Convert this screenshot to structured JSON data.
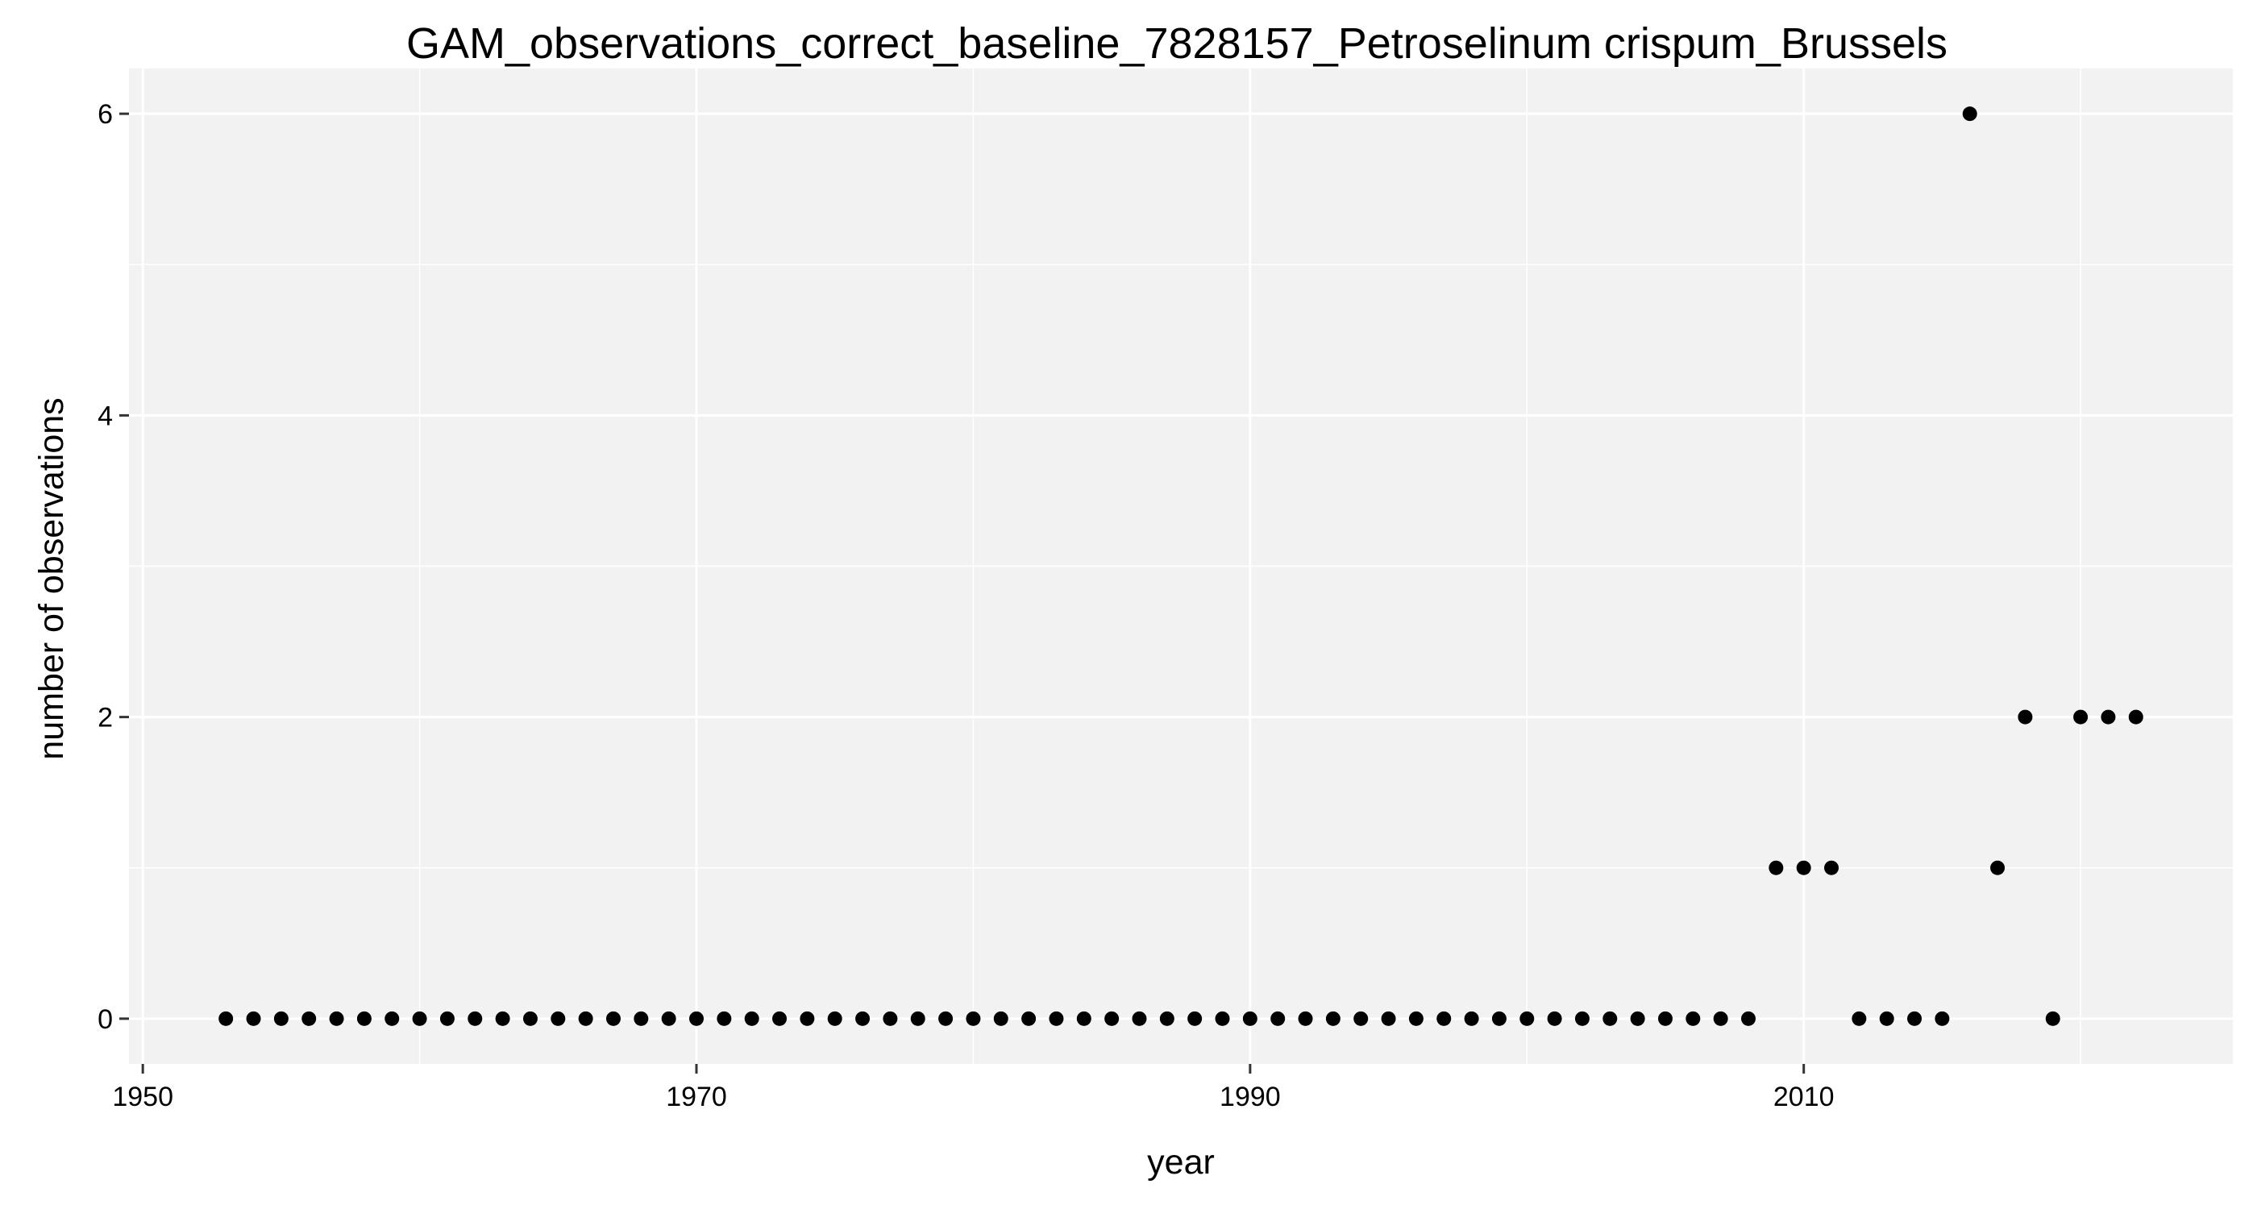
{
  "chart_data": {
    "type": "scatter",
    "title": "GAM_observations_correct_baseline_7828157_Petroselinum crispum_Brussels",
    "xlabel": "year",
    "ylabel": "number of observations",
    "xlim": [
      1949.5,
      2025.5
    ],
    "ylim": [
      -0.3,
      6.3
    ],
    "x_ticks": [
      1950,
      1970,
      1990,
      2010
    ],
    "x_tick_labels": [
      "1950",
      "1970",
      "1990",
      "2010"
    ],
    "y_ticks": [
      0,
      2,
      4,
      6
    ],
    "y_tick_labels": [
      "0",
      "2",
      "4",
      "6"
    ],
    "grid": true,
    "legend": "none",
    "colors": {
      "panel_background": "#f2f2f2",
      "grid_line": "#ffffff",
      "point": "#000000",
      "tick": "#333333"
    },
    "series": [
      {
        "x": [
          1953,
          1954,
          1955,
          1956,
          1957,
          1958,
          1959,
          1960,
          1961,
          1962,
          1963,
          1964,
          1965,
          1966,
          1967,
          1968,
          1969,
          1970,
          1971,
          1972,
          1973,
          1974,
          1975,
          1976,
          1977,
          1978,
          1979,
          1980,
          1981,
          1982,
          1983,
          1984,
          1985,
          1986,
          1987,
          1988,
          1989,
          1990,
          1991,
          1992,
          1993,
          1994,
          1995,
          1996,
          1997,
          1998,
          1999,
          2000,
          2001,
          2002,
          2003,
          2004,
          2005,
          2006,
          2007,
          2008,
          2009,
          2010,
          2011,
          2012,
          2013,
          2014,
          2015,
          2016,
          2017,
          2018,
          2019,
          2020,
          2021,
          2022
        ],
        "y": [
          0,
          0,
          0,
          0,
          0,
          0,
          0,
          0,
          0,
          0,
          0,
          0,
          0,
          0,
          0,
          0,
          0,
          0,
          0,
          0,
          0,
          0,
          0,
          0,
          0,
          0,
          0,
          0,
          0,
          0,
          0,
          0,
          0,
          0,
          0,
          0,
          0,
          0,
          0,
          0,
          0,
          0,
          0,
          0,
          0,
          0,
          0,
          0,
          0,
          0,
          0,
          0,
          0,
          0,
          0,
          0,
          1,
          1,
          1,
          0,
          0,
          0,
          0,
          6,
          1,
          2,
          0,
          2,
          2,
          2
        ]
      }
    ]
  }
}
